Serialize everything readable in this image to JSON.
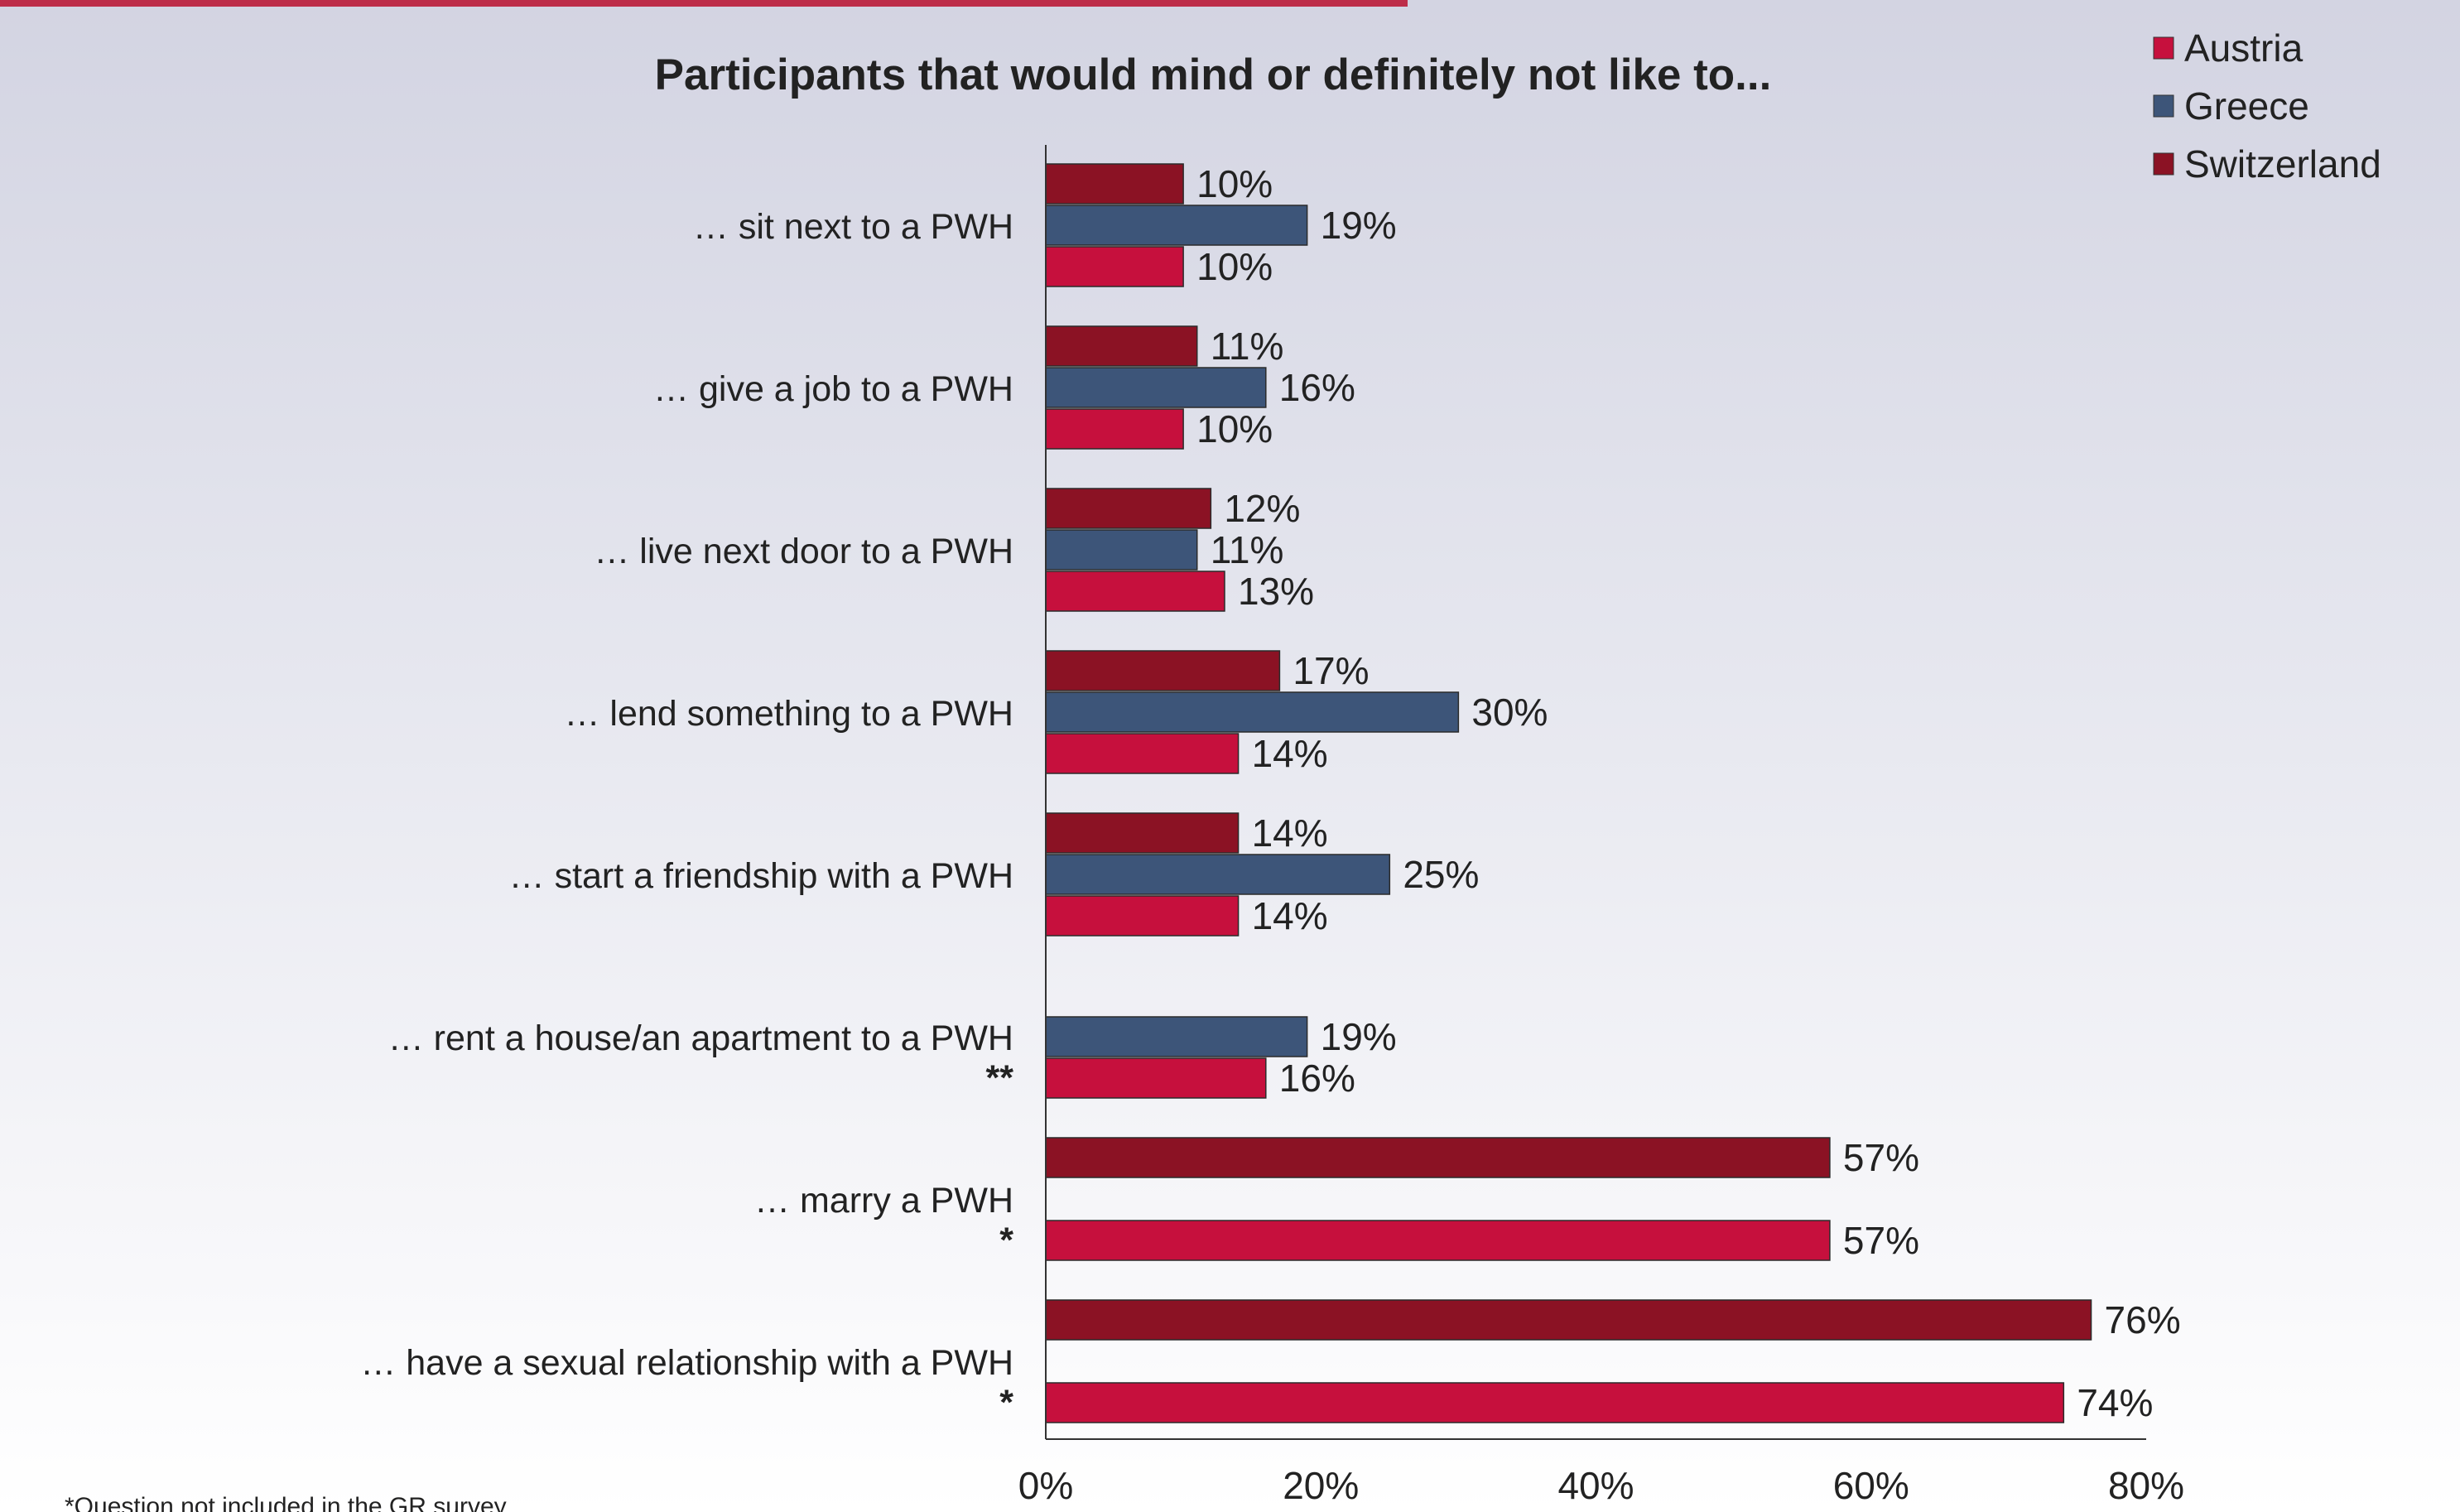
{
  "chart_data": {
    "type": "bar",
    "orientation": "horizontal",
    "title": "Participants that would mind or definitely not like to...",
    "categories": [
      "… sit next to a PWH",
      "… give a job to a PWH",
      "… live next door to a PWH",
      "… lend something to a PWH",
      "… start a friendship with a PWH",
      "… rent a house/an apartment to a PWH",
      "… marry a PWH",
      "… have a sexual relationship with a PWH"
    ],
    "category_notes": [
      "",
      "",
      "",
      "",
      "",
      "**",
      "*",
      "*"
    ],
    "series": [
      {
        "name": "Switzerland",
        "color": "#8b1224",
        "values": [
          10,
          11,
          12,
          17,
          14,
          null,
          57,
          76
        ]
      },
      {
        "name": "Greece",
        "color": "#3d5579",
        "values": [
          19,
          16,
          11,
          30,
          25,
          19,
          null,
          null
        ]
      },
      {
        "name": "Austria",
        "color": "#c6103d",
        "values": [
          10,
          10,
          13,
          14,
          14,
          16,
          57,
          74
        ]
      }
    ],
    "legend_order": [
      "Austria",
      "Greece",
      "Switzerland"
    ],
    "legend_position": "top-right",
    "value_format": "{v}%",
    "xlim": [
      0,
      80
    ],
    "xticks": [
      "0%",
      "20%",
      "40%",
      "60%",
      "80%"
    ],
    "xlabel": "",
    "ylabel": "",
    "grid": false
  },
  "footnote": "*Question not included in the GR survey"
}
